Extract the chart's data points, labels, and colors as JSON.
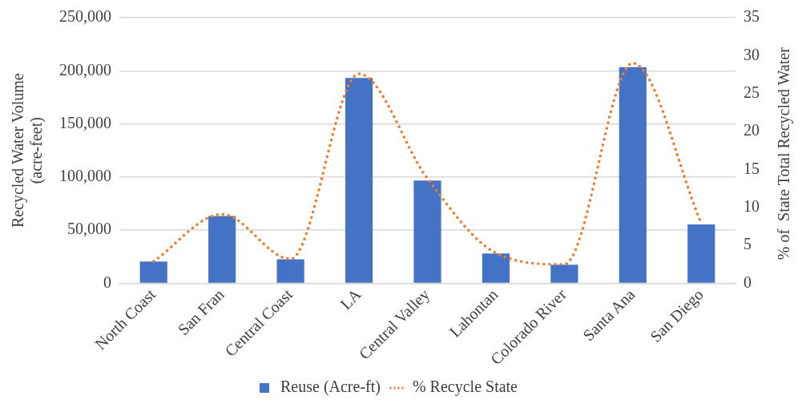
{
  "chart_data": {
    "type": "bar",
    "categories": [
      "North Coast",
      "San Fran",
      "Central Coast",
      "LA",
      "Central Valley",
      "Lahontan",
      "Colorado River",
      "Santa Ana",
      "San Diego"
    ],
    "ylabel": "Recycled Water Volume\n(acre-feet)",
    "y2label": "% of  State Total Recycled Water",
    "ylim": [
      0,
      250000
    ],
    "yticks": [
      0,
      {
        "value": 50000,
        "label": "50,000"
      },
      {
        "value": 100000,
        "label": "100,000"
      },
      {
        "value": 150000,
        "label": "150,000"
      },
      {
        "value": 200000,
        "label": "200,000"
      },
      {
        "value": 250000,
        "label": "250,000"
      }
    ],
    "y2lim": [
      0,
      35
    ],
    "y2ticks": [
      0,
      5,
      10,
      15,
      20,
      25,
      30,
      35
    ],
    "grid": "y",
    "legend": "bottom",
    "series": [
      {
        "name": "Reuse (Acre-ft)",
        "color": "#4472c4",
        "values": [
          20500,
          63400,
          22500,
          193200,
          96700,
          28000,
          17400,
          203500,
          55400
        ]
      },
      {
        "name": "% Recycle State",
        "type": "line",
        "axis": "y2",
        "color": "#ed7d31",
        "line_style": "dotted",
        "marker": "none",
        "values": [
          2.9,
          9.1,
          3.2,
          27.6,
          13.8,
          4.0,
          2.5,
          29.0,
          7.9
        ]
      }
    ]
  }
}
